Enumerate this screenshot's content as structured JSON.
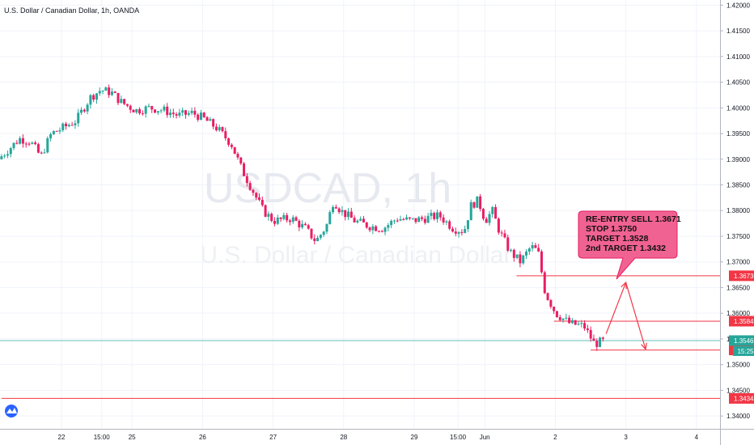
{
  "header": {
    "instrument_title": "U.S. Dollar / Canadian Dollar, 1h, OANDA"
  },
  "watermark": {
    "symbol": "USDCAD, 1h",
    "description": "U.S. Dollar / Canadian Dollar"
  },
  "annotation": {
    "lines": [
      "RE-ENTRY SELL 1.3671",
      "STOP 1.3750",
      "TARGET 1.3528",
      "2nd TARGET 1.3432"
    ],
    "color": "#f06292"
  },
  "colors": {
    "up": "#26a69a",
    "down": "#e91e63",
    "level_line": "#f23645",
    "current_price_line": "#26a69a",
    "grid": "#f0f3fa",
    "axis_text": "#131722"
  },
  "chart_data": {
    "type": "candlestick",
    "title": "U.S. Dollar / Canadian Dollar, 1h, OANDA",
    "xlabel": "",
    "ylabel": "",
    "ylim": [
      1.3375,
      1.421
    ],
    "grid": true,
    "x_ticks": [
      {
        "label": "22",
        "x": 3.0
      },
      {
        "label": "15:00",
        "x": 3.57
      },
      {
        "label": "25",
        "x": 4.0
      },
      {
        "label": "26",
        "x": 5.0
      },
      {
        "label": "27",
        "x": 6.0
      },
      {
        "label": "28",
        "x": 7.0
      },
      {
        "label": "29",
        "x": 8.0
      },
      {
        "label": "15:00",
        "x": 8.62
      },
      {
        "label": "Jun",
        "x": 9.0
      },
      {
        "label": "2",
        "x": 10.0
      },
      {
        "label": "3",
        "x": 11.0
      },
      {
        "label": "4",
        "x": 12.0
      }
    ],
    "y_ticks": [
      1.34,
      1.345,
      1.35,
      1.355,
      1.36,
      1.365,
      1.37,
      1.375,
      1.38,
      1.385,
      1.39,
      1.395,
      1.4,
      1.405,
      1.41,
      1.415,
      1.42
    ],
    "y_tick_labels": [
      "1.34000",
      "1.34500",
      "1.35000",
      "1.35500",
      "1.36000",
      "1.36500",
      "1.37000",
      "1.37500",
      "1.38000",
      "1.38500",
      "1.39000",
      "1.39500",
      "1.40000",
      "1.40500",
      "1.41000",
      "1.41500",
      "1.42000"
    ],
    "x_range": [
      2.15,
      12.45
    ],
    "price_path": [
      [
        2.15,
        1.39
      ],
      [
        2.3,
        1.392
      ],
      [
        2.45,
        1.394
      ],
      [
        2.6,
        1.3935
      ],
      [
        2.75,
        1.3905
      ],
      [
        2.9,
        1.395
      ],
      [
        3.05,
        1.396
      ],
      [
        3.25,
        1.3975
      ],
      [
        3.45,
        1.402
      ],
      [
        3.6,
        1.4035
      ],
      [
        3.75,
        1.403
      ],
      [
        3.9,
        1.401
      ],
      [
        4.1,
        1.3995
      ],
      [
        4.3,
        1.4
      ],
      [
        4.5,
        1.3995
      ],
      [
        4.7,
        1.3985
      ],
      [
        4.9,
        1.399
      ],
      [
        5.05,
        1.398
      ],
      [
        5.25,
        1.396
      ],
      [
        5.45,
        1.393
      ],
      [
        5.6,
        1.388
      ],
      [
        5.75,
        1.384
      ],
      [
        5.9,
        1.38
      ],
      [
        6.05,
        1.378
      ],
      [
        6.3,
        1.3785
      ],
      [
        6.5,
        1.3765
      ],
      [
        6.65,
        1.374
      ],
      [
        6.8,
        1.377
      ],
      [
        6.9,
        1.382
      ],
      [
        7.0,
        1.38
      ],
      [
        7.2,
        1.378
      ],
      [
        7.4,
        1.377
      ],
      [
        7.6,
        1.3765
      ],
      [
        7.8,
        1.3785
      ],
      [
        8.0,
        1.378
      ],
      [
        8.2,
        1.3785
      ],
      [
        8.4,
        1.379
      ],
      [
        8.6,
        1.3765
      ],
      [
        8.75,
        1.376
      ],
      [
        8.85,
        1.381
      ],
      [
        8.95,
        1.382
      ],
      [
        9.05,
        1.378
      ],
      [
        9.15,
        1.38
      ],
      [
        9.25,
        1.376
      ],
      [
        9.4,
        1.372
      ],
      [
        9.55,
        1.37
      ],
      [
        9.7,
        1.373
      ],
      [
        9.8,
        1.372
      ],
      [
        9.9,
        1.364
      ],
      [
        10.05,
        1.36
      ],
      [
        10.25,
        1.358
      ],
      [
        10.45,
        1.3575
      ],
      [
        10.6,
        1.354
      ],
      [
        10.7,
        1.3545
      ]
    ],
    "levels": [
      {
        "price": 1.3673,
        "label": "1.36730",
        "x_start": 9.45
      },
      {
        "price": 1.35846,
        "label": "1.35846",
        "x_start": 9.98
      },
      {
        "price": 1.35285,
        "label": "1.35285",
        "x_start": 10.5
      },
      {
        "price": 1.34342,
        "label": "1.34342",
        "x_start": 2.15
      }
    ],
    "current_price": {
      "price": 1.35468,
      "label": "1.35468",
      "countdown": "15:25"
    },
    "projection": [
      [
        10.72,
        1.356
      ],
      [
        11.0,
        1.366
      ],
      [
        11.28,
        1.353
      ]
    ]
  }
}
